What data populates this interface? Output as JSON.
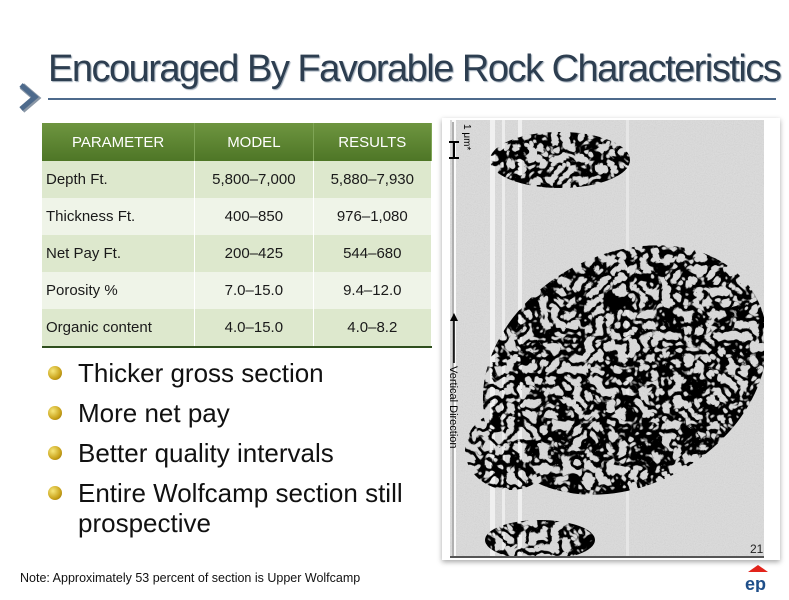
{
  "slide": {
    "title": "Encouraged By Favorable Rock  Characteristics",
    "page_number": "21",
    "note": "Note:  Approximately 53 percent of section is Upper Wolfcamp",
    "accent_color": "#4d6a8c",
    "table_header_color": "#5b8232"
  },
  "table": {
    "headers": [
      "PARAMETER",
      "MODEL",
      "RESULTS"
    ],
    "rows": [
      [
        "Depth Ft.",
        "5,800–7,000",
        "5,880–7,930"
      ],
      [
        "Thickness Ft.",
        "400–850",
        "976–1,080"
      ],
      [
        "Net Pay Ft.",
        "200–425",
        "544–680"
      ],
      [
        "Porosity %",
        "7.0–15.0",
        "9.4–12.0"
      ],
      [
        "Organic content",
        "4.0–15.0",
        "4.0–8.2"
      ]
    ]
  },
  "bullets": [
    "Thicker gross section",
    "More net pay",
    "Better quality intervals",
    "Entire Wolfcamp section still prospective"
  ],
  "micrograph": {
    "scale_label": "1 μm*",
    "direction_label": "Vertical Direction"
  },
  "logo": {
    "text": "ep"
  }
}
